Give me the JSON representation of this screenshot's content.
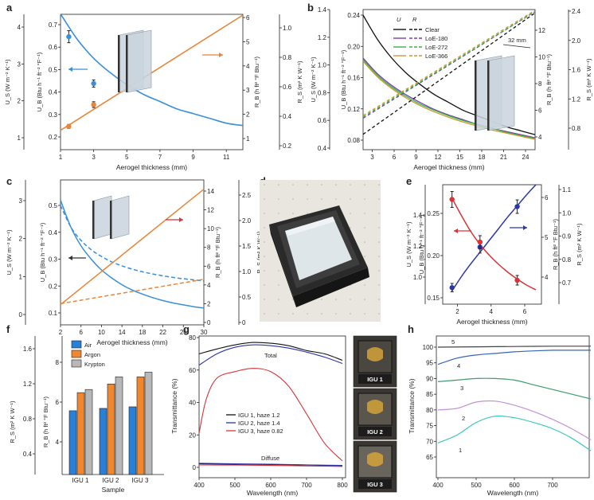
{
  "panels": {
    "a": {
      "label": "a",
      "xlabel": "Aerogel thickness (mm)",
      "xticks": [
        "1",
        "3",
        "5",
        "7",
        "9",
        "11"
      ],
      "yleft_ticks_si": [
        "1",
        "2",
        "3",
        "4"
      ],
      "yleft_ticks_imp": [
        "0.2",
        "0.3",
        "0.4",
        "0.5",
        "0.6",
        "0.7"
      ],
      "yright_ticks_imp": [
        "1",
        "2",
        "3",
        "4",
        "5",
        "6"
      ],
      "yright_ticks_si": [
        "0.2",
        "0.4",
        "0.6",
        "0.8",
        "1.0"
      ],
      "ylabel_left_si": "U_S (W m⁻² K⁻¹)",
      "ylabel_left_imp": "U_B (Btu h⁻¹ ft⁻² °F⁻¹)",
      "ylabel_right_imp": "R_B (h ft² °F Btu⁻¹)",
      "ylabel_right_si": "R_S (m² K W⁻¹)"
    },
    "b": {
      "label": "b",
      "xlabel": "Aerogel thickness (mm)",
      "xticks": [
        "3",
        "6",
        "9",
        "12",
        "15",
        "18",
        "21",
        "24"
      ],
      "yleft_ticks_si": [
        "0.4",
        "0.6",
        "0.8",
        "1.0",
        "1.2",
        "1.4"
      ],
      "yleft_ticks_imp": [
        "0.08",
        "0.12",
        "0.16",
        "0.20",
        "0.24"
      ],
      "yright_ticks_imp": [
        "4",
        "6",
        "8",
        "10",
        "12"
      ],
      "yright_ticks_si": [
        "0.8",
        "1.2",
        "1.6",
        "2.0",
        "2.4"
      ],
      "ylabel_left_si": "U_S (W m⁻² K⁻¹)",
      "ylabel_left_imp": "U_B (Btu h⁻¹ ft⁻² °F⁻¹)",
      "ylabel_right_imp": "R_B (h ft² °F Btu⁻¹)",
      "ylabel_right_si": "R_S (m² K W⁻¹)",
      "legend_header_u": "U",
      "legend_header_r": "R",
      "legend": [
        "Clear",
        "LoE-180",
        "LoE-272",
        "LoE-366"
      ],
      "annotation": "32 mm"
    },
    "c": {
      "label": "c",
      "xlabel": "Aerogel thickness (mm)",
      "xticks": [
        "2",
        "6",
        "10",
        "14",
        "18",
        "22",
        "26",
        "30"
      ],
      "yleft_ticks_si": [
        "0",
        "1",
        "2",
        "3"
      ],
      "yleft_ticks_imp": [
        "0.1",
        "0.2",
        "0.3",
        "0.4",
        "0.5"
      ],
      "yright_ticks_imp": [
        "0",
        "2",
        "4",
        "6",
        "8",
        "10",
        "12",
        "14"
      ],
      "yright_ticks_si": [
        "0",
        "0.5",
        "1.0",
        "1.5",
        "2.0",
        "2.5"
      ],
      "ylabel_left_si": "U_S (W m⁻² K⁻¹)",
      "ylabel_left_imp": "U_B (Btu h⁻¹ ft⁻² °F⁻¹)",
      "ylabel_right_imp": "R_B (h ft² °F Btu⁻¹)",
      "ylabel_right_si": "R_S (m² K W⁻¹)"
    },
    "d": {
      "label": "d"
    },
    "e": {
      "label": "e",
      "xlabel": "Aerogel thickness (mm)",
      "xticks": [
        "2",
        "4",
        "6"
      ],
      "yleft_ticks_si": [
        "1.0",
        "1.2",
        "1.4"
      ],
      "yleft_ticks_imp": [
        "0.15",
        "0.20",
        "0.25"
      ],
      "yright_ticks_imp": [
        "4",
        "5",
        "6"
      ],
      "yright_ticks_si": [
        "0.7",
        "0.8",
        "0.9",
        "1.0",
        "1.1"
      ],
      "ylabel_left_si": "U_S (W m⁻² K⁻¹)",
      "ylabel_left_imp": "U_B (Btu h⁻¹ ft⁻² °F⁻¹)",
      "ylabel_right_imp": "R_B (h ft² °F Btu⁻¹)",
      "ylabel_right_si": "R_S (m² K W⁻¹)"
    },
    "f": {
      "label": "f",
      "xlabel": "Sample",
      "yticks_si": [
        "0.4",
        "0.8",
        "1.2",
        "1.6"
      ],
      "yticks_imp": [
        "4",
        "6",
        "8"
      ],
      "ylabel_si": "R_S (m² K W⁻¹)",
      "ylabel_imp": "R_B (h ft² °F Btu⁻¹)",
      "legend": [
        "Air",
        "Argon",
        "Krypton"
      ]
    },
    "g": {
      "label": "g",
      "xlabel": "Wavelength (nm)",
      "ylabel": "Transmittance (%)",
      "xticks": [
        "400",
        "500",
        "600",
        "700",
        "800"
      ],
      "yticks": [
        "0",
        "20",
        "40",
        "60",
        "80"
      ],
      "total_label": "Total",
      "diffuse_label": "Diffuse",
      "legend": [
        "IGU 1, haze 1.2",
        "IGU 2, haze 1.4",
        "IGU 3, haze 0.82"
      ],
      "photos": [
        "IGU 1",
        "IGU 2",
        "IGU 3"
      ]
    },
    "h": {
      "label": "h",
      "xlabel": "Wavelength (nm)",
      "ylabel": "Transmittance (%)",
      "xticks": [
        "400",
        "500",
        "600",
        "700"
      ],
      "yticks": [
        "65",
        "70",
        "75",
        "80",
        "85",
        "90",
        "95",
        "100"
      ],
      "curve_labels": [
        "1",
        "2",
        "3",
        "4",
        "5"
      ]
    }
  },
  "colors": {
    "blue": "#3a8fd8",
    "orange": "#e8853a",
    "red": "#d8333a",
    "navy": "#2b36a8",
    "black": "#111111",
    "purple": "#7a3fb0",
    "green": "#3cb04a",
    "gold": "#c99a2e",
    "bar_air": "#2a7fd6",
    "bar_argon": "#f0862e",
    "bar_krypton": "#b8b8b8",
    "h1": "#3cc8c0",
    "h2": "#c490d8",
    "h3": "#3f9a70",
    "h4": "#3366bb",
    "h5": "#444444"
  },
  "chart_data": [
    {
      "panel": "a",
      "type": "line",
      "series": [
        {
          "name": "U",
          "axis": "left-imp",
          "x": [
            1,
            2,
            3,
            4,
            5,
            6,
            7,
            8,
            9,
            10,
            11,
            12
          ],
          "y": [
            0.745,
            0.64,
            0.56,
            0.5,
            0.45,
            0.41,
            0.38,
            0.35,
            0.33,
            0.31,
            0.29,
            0.28
          ]
        },
        {
          "name": "R",
          "axis": "right-imp",
          "x": [
            1,
            12
          ],
          "y": [
            1.34,
            6.1
          ]
        }
      ],
      "points": [
        {
          "series": "U",
          "x": 1.5,
          "y": 0.65,
          "err": 0.025
        },
        {
          "series": "U",
          "x": 3,
          "y": 0.455,
          "err": 0.015
        },
        {
          "series": "R",
          "x": 1.5,
          "y": 1.5,
          "err": 0.08
        },
        {
          "series": "R",
          "x": 3,
          "y": 2.4,
          "err": 0.12
        }
      ],
      "xlim": [
        1,
        12
      ],
      "ylim_left_imp": [
        0.18,
        0.78
      ],
      "ylim_right_imp": [
        1,
        6.4
      ]
    },
    {
      "panel": "b",
      "type": "line",
      "series": [
        {
          "name": "Clear U",
          "axis": "left-imp",
          "x": [
            2,
            4,
            6,
            8,
            10,
            12,
            14,
            16,
            18,
            20,
            22,
            24,
            26
          ],
          "y": [
            0.24,
            0.209,
            0.185,
            0.166,
            0.151,
            0.138,
            0.128,
            0.118,
            0.111,
            0.104,
            0.097,
            0.092,
            0.087
          ]
        },
        {
          "name": "LoE-180 U",
          "axis": "left-imp",
          "x": [
            2,
            4,
            6,
            8,
            10,
            12,
            14,
            16,
            18,
            20,
            22,
            24,
            26
          ],
          "y": [
            0.185,
            0.165,
            0.15,
            0.138,
            0.128,
            0.119,
            0.112,
            0.106,
            0.1,
            0.095,
            0.091,
            0.087,
            0.083
          ]
        },
        {
          "name": "LoE-272 U",
          "axis": "left-imp",
          "x": [
            2,
            4,
            6,
            8,
            10,
            12,
            14,
            16,
            18,
            20,
            22,
            24,
            26
          ],
          "y": [
            0.183,
            0.163,
            0.148,
            0.136,
            0.126,
            0.118,
            0.111,
            0.105,
            0.1,
            0.095,
            0.09,
            0.086,
            0.082
          ]
        },
        {
          "name": "LoE-366 U",
          "axis": "left-imp",
          "x": [
            2,
            4,
            6,
            8,
            10,
            12,
            14,
            16,
            18,
            20,
            22,
            24,
            26
          ],
          "y": [
            0.181,
            0.161,
            0.146,
            0.134,
            0.124,
            0.116,
            0.109,
            0.103,
            0.098,
            0.093,
            0.089,
            0.085,
            0.081
          ]
        },
        {
          "name": "Clear R",
          "axis": "right-imp",
          "x": [
            2,
            26
          ],
          "y": [
            4.2,
            13.3
          ]
        },
        {
          "name": "LoE-180 R",
          "axis": "right-imp",
          "x": [
            2,
            26
          ],
          "y": [
            5.4,
            13.4
          ]
        },
        {
          "name": "LoE-272 R",
          "axis": "right-imp",
          "x": [
            2,
            26
          ],
          "y": [
            5.5,
            13.4
          ]
        },
        {
          "name": "LoE-366 R",
          "axis": "right-imp",
          "x": [
            2,
            26
          ],
          "y": [
            5.6,
            13.5
          ]
        }
      ],
      "xlim": [
        2,
        26
      ],
      "ylim_left_imp": [
        0.07,
        0.25
      ],
      "ylim_right_imp": [
        3,
        14
      ]
    },
    {
      "panel": "c",
      "type": "line",
      "series": [
        {
          "name": "U solid",
          "axis": "left-imp",
          "x": [
            2,
            4,
            6,
            8,
            10,
            12,
            14,
            16,
            18,
            20,
            22,
            24,
            26,
            28,
            30
          ],
          "y": [
            0.52,
            0.42,
            0.35,
            0.3,
            0.26,
            0.23,
            0.205,
            0.185,
            0.17,
            0.157,
            0.146,
            0.137,
            0.13,
            0.123,
            0.118
          ]
        },
        {
          "name": "U dashed",
          "axis": "left-imp",
          "x": [
            2,
            4,
            6,
            8,
            10,
            12,
            14,
            16,
            18,
            20,
            22,
            24,
            26,
            28,
            30
          ],
          "y": [
            0.5,
            0.42,
            0.37,
            0.335,
            0.31,
            0.29,
            0.275,
            0.263,
            0.253,
            0.245,
            0.238,
            0.232,
            0.227,
            0.223,
            0.219
          ]
        },
        {
          "name": "R solid",
          "axis": "right-imp",
          "x": [
            2,
            30
          ],
          "y": [
            1.9,
            14.2
          ]
        },
        {
          "name": "R dashed",
          "axis": "right-imp",
          "x": [
            2,
            30
          ],
          "y": [
            2.0,
            4.6
          ]
        }
      ],
      "xlim": [
        2,
        30
      ],
      "ylim_left_imp": [
        0.045,
        0.58
      ],
      "ylim_right_imp": [
        0,
        15.3
      ]
    },
    {
      "panel": "e",
      "type": "line",
      "series": [
        {
          "name": "U",
          "axis": "left-imp",
          "x": [
            1.5,
            2,
            2.5,
            3,
            3.5,
            4,
            4.5,
            5,
            5.5,
            6
          ],
          "y": [
            0.158,
            0.175,
            0.19,
            0.204,
            0.218,
            0.232,
            0.246,
            0.259,
            0.272,
            0.284
          ]
        },
        {
          "name": "R",
          "axis": "right-imp",
          "x": [
            1.5,
            2,
            2.5,
            3,
            3.5,
            4,
            4.5,
            5,
            5.5,
            6
          ],
          "y": [
            5.98,
            5.55,
            5.15,
            4.82,
            4.55,
            4.32,
            4.12,
            3.95,
            3.8,
            3.68
          ]
        }
      ],
      "points": [
        {
          "series": "U",
          "x": 1.5,
          "y": 0.162,
          "err": 0.005
        },
        {
          "series": "U",
          "x": 3,
          "y": 0.21,
          "err": 0.007
        },
        {
          "series": "U",
          "x": 5,
          "y": 0.258,
          "err": 0.008
        },
        {
          "series": "R",
          "x": 1.5,
          "y": 5.95,
          "err": 0.2
        },
        {
          "series": "R",
          "x": 3,
          "y": 4.88,
          "err": 0.16
        },
        {
          "series": "R",
          "x": 5,
          "y": 3.92,
          "err": 0.12
        }
      ],
      "xlim": [
        1,
        6.3
      ],
      "ylim_left_imp": [
        0.148,
        0.295
      ],
      "ylim_right_imp": [
        3.4,
        6.4
      ]
    },
    {
      "panel": "f",
      "type": "bar",
      "categories": [
        "IGU 1",
        "IGU 2",
        "IGU 3"
      ],
      "series": [
        {
          "name": "Air",
          "values": [
            0.81,
            0.84,
            0.86
          ]
        },
        {
          "name": "Argon",
          "values": [
            1.04,
            1.15,
            1.24
          ]
        },
        {
          "name": "Krypton",
          "values": [
            1.08,
            1.24,
            1.3
          ]
        }
      ],
      "ylim": [
        0,
        1.8
      ]
    },
    {
      "panel": "g",
      "type": "line",
      "series": [
        {
          "name": "IGU 1, haze 1.2",
          "x": [
            400,
            450,
            500,
            550,
            600,
            650,
            700,
            750,
            800
          ],
          "y": [
            70,
            73,
            75.5,
            77,
            76.5,
            75,
            72,
            70,
            66
          ]
        },
        {
          "name": "IGU 2, haze 1.4",
          "x": [
            400,
            450,
            500,
            550,
            600,
            650,
            700,
            750,
            800
          ],
          "y": [
            63,
            70,
            74,
            75.5,
            75,
            73.5,
            71,
            68,
            64
          ]
        },
        {
          "name": "IGU 3, haze 0.82",
          "x": [
            400,
            420,
            450,
            500,
            550,
            600,
            650,
            700,
            750,
            800
          ],
          "y": [
            21,
            42,
            55,
            59,
            61,
            59,
            50,
            33,
            15,
            4
          ]
        },
        {
          "name": "IGU 1 diffuse",
          "x": [
            400,
            500,
            600,
            700,
            800
          ],
          "y": [
            2.2,
            2.0,
            1.7,
            1.4,
            1.0
          ]
        },
        {
          "name": "IGU 2 diffuse",
          "x": [
            400,
            500,
            600,
            700,
            800
          ],
          "y": [
            2.5,
            2.2,
            1.9,
            1.5,
            1.2
          ]
        },
        {
          "name": "IGU 3 diffuse",
          "x": [
            400,
            500,
            600,
            700,
            800
          ],
          "y": [
            1.5,
            1.4,
            1.2,
            0.9,
            0.6
          ]
        }
      ],
      "xlim": [
        400,
        810
      ],
      "ylim": [
        -3,
        80
      ]
    },
    {
      "panel": "h",
      "type": "line",
      "series": [
        {
          "name": "1",
          "x": [
            400,
            450,
            500,
            550,
            600,
            650,
            700,
            750,
            800
          ],
          "y": [
            69.5,
            72,
            76,
            78,
            77.5,
            76,
            74,
            71,
            67
          ]
        },
        {
          "name": "2",
          "x": [
            400,
            450,
            500,
            550,
            600,
            650,
            700,
            750,
            800
          ],
          "y": [
            80,
            80.5,
            82.5,
            82.8,
            81.5,
            79.5,
            77,
            74,
            70.5
          ]
        },
        {
          "name": "3",
          "x": [
            400,
            450,
            500,
            550,
            600,
            650,
            700,
            750,
            800
          ],
          "y": [
            89,
            89.5,
            90,
            90,
            89.5,
            88,
            86.5,
            85,
            83.5
          ]
        },
        {
          "name": "4",
          "x": [
            400,
            450,
            500,
            550,
            600,
            650,
            700,
            750,
            800
          ],
          "y": [
            94.5,
            96.5,
            97.5,
            98,
            98.5,
            98.8,
            99,
            99,
            99
          ]
        },
        {
          "name": "5",
          "x": [
            400,
            500,
            600,
            700,
            800
          ],
          "y": [
            100,
            100.1,
            100.2,
            100.3,
            100.3
          ]
        }
      ],
      "xlim": [
        400,
        800
      ],
      "ylim": [
        65,
        101
      ]
    }
  ]
}
